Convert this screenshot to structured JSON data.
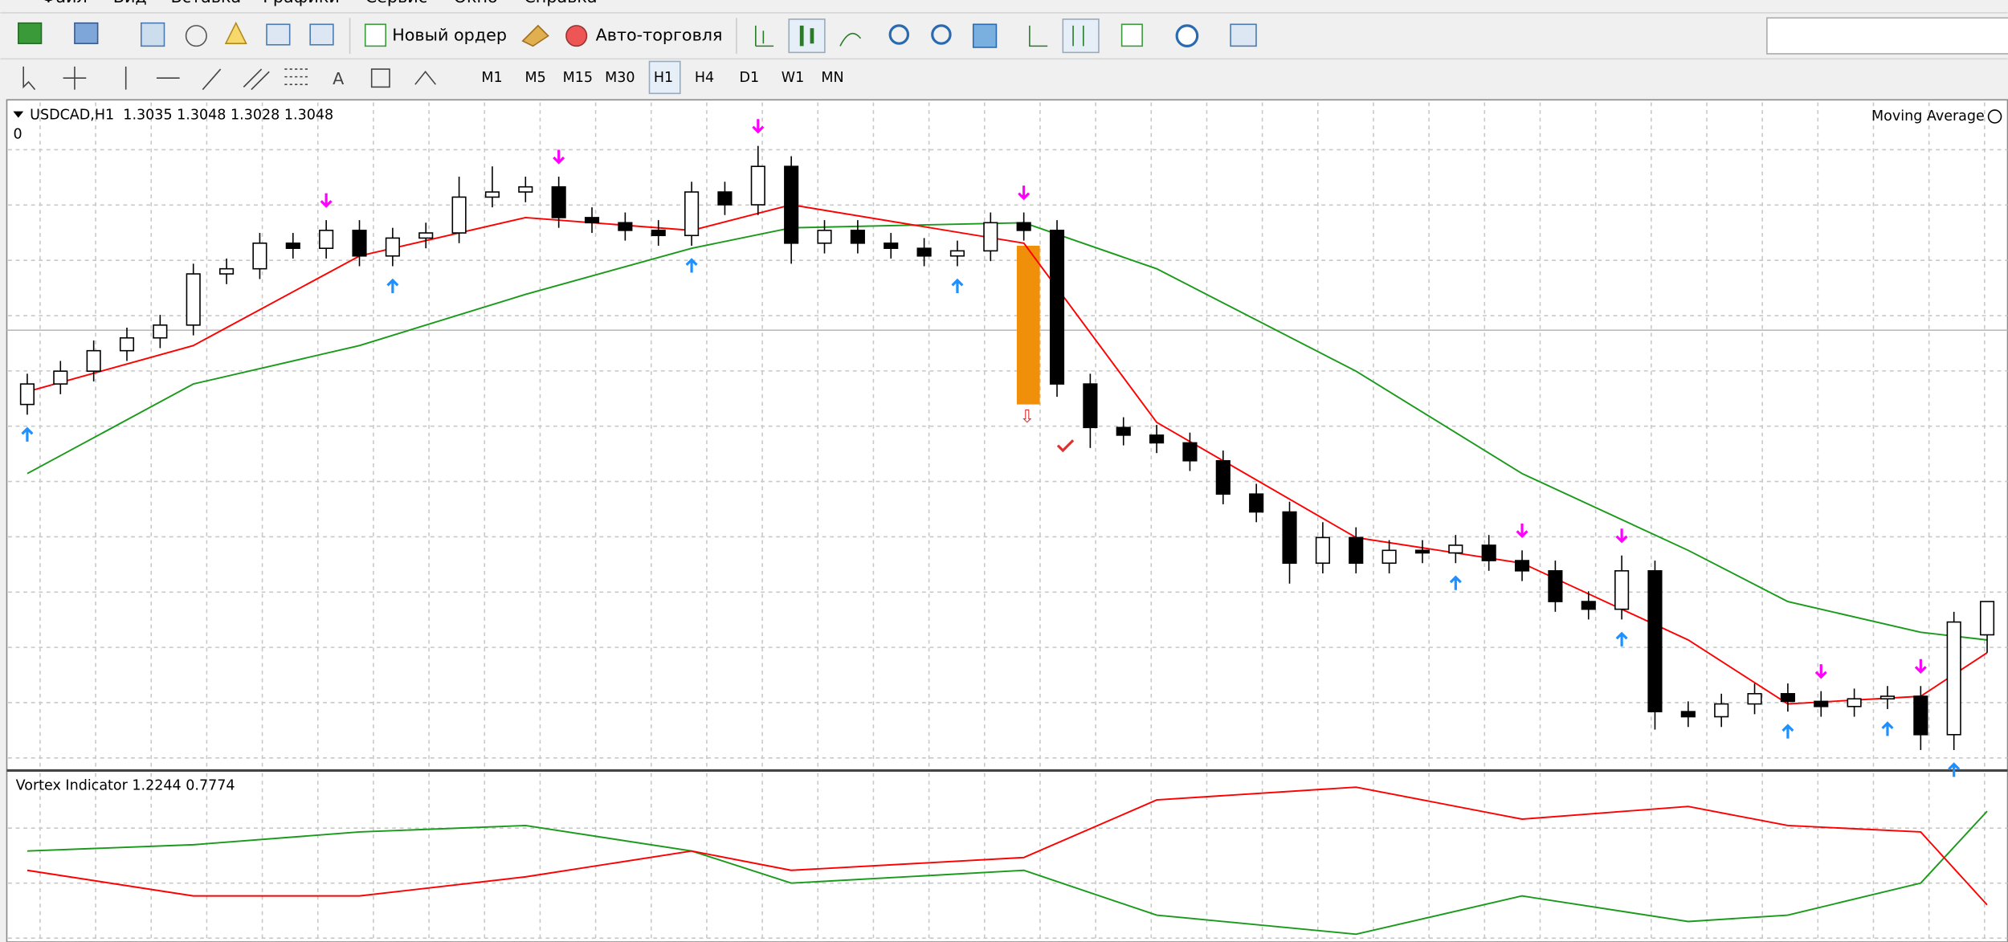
{
  "menu": [
    "Файл",
    "Вид",
    "Вставка",
    "Графики",
    "Сервис",
    "Окно",
    "Справка"
  ],
  "toolbar": {
    "new_order": "Новый ордер",
    "auto_trading": "Авто-торговля"
  },
  "timeframes": [
    "M1",
    "M5",
    "M15",
    "M30",
    "H1",
    "H4",
    "D1",
    "W1",
    "MN"
  ],
  "chart": {
    "symbol_line": "USDCAD,H1  1.3035 1.3048 1.3028 1.3048",
    "level": "0",
    "indicator_label": "Moving Average",
    "ylim": [
      1.2983,
      1.3243
    ],
    "candles": [
      [
        1.3125,
        1.3137,
        1.3121,
        1.3133
      ],
      [
        1.3133,
        1.3142,
        1.3129,
        1.3138
      ],
      [
        1.3138,
        1.315,
        1.3134,
        1.3146
      ],
      [
        1.3146,
        1.3155,
        1.3142,
        1.3151
      ],
      [
        1.3151,
        1.316,
        1.3147,
        1.3156
      ],
      [
        1.3156,
        1.318,
        1.3152,
        1.3176
      ],
      [
        1.3176,
        1.3182,
        1.3172,
        1.3178
      ],
      [
        1.3178,
        1.3192,
        1.3174,
        1.3188
      ],
      [
        1.3188,
        1.3192,
        1.3182,
        1.3186
      ],
      [
        1.3186,
        1.3197,
        1.3182,
        1.3193
      ],
      [
        1.3193,
        1.3197,
        1.3179,
        1.3183
      ],
      [
        1.3183,
        1.3194,
        1.3179,
        1.319
      ],
      [
        1.319,
        1.3196,
        1.3186,
        1.3192
      ],
      [
        1.3192,
        1.3214,
        1.3188,
        1.3206
      ],
      [
        1.3206,
        1.3218,
        1.3202,
        1.3208
      ],
      [
        1.3208,
        1.3214,
        1.3204,
        1.321
      ],
      [
        1.321,
        1.3214,
        1.3194,
        1.3198
      ],
      [
        1.3198,
        1.3202,
        1.3192,
        1.3196
      ],
      [
        1.3196,
        1.32,
        1.3189,
        1.3193
      ],
      [
        1.3193,
        1.3197,
        1.3187,
        1.3191
      ],
      [
        1.3191,
        1.3212,
        1.3187,
        1.3208
      ],
      [
        1.3208,
        1.3212,
        1.3199,
        1.3203
      ],
      [
        1.3203,
        1.3226,
        1.3199,
        1.3218
      ],
      [
        1.3218,
        1.3222,
        1.318,
        1.3188
      ],
      [
        1.3188,
        1.3197,
        1.3184,
        1.3193
      ],
      [
        1.3193,
        1.3197,
        1.3184,
        1.3188
      ],
      [
        1.3188,
        1.3192,
        1.3182,
        1.3186
      ],
      [
        1.3186,
        1.319,
        1.3179,
        1.3183
      ],
      [
        1.3183,
        1.3189,
        1.3179,
        1.3185
      ],
      [
        1.3185,
        1.32,
        1.3181,
        1.3196
      ],
      [
        1.3196,
        1.32,
        1.3189,
        1.3193
      ],
      [
        1.3193,
        1.3197,
        1.3128,
        1.3133
      ],
      [
        1.3133,
        1.3137,
        1.3108,
        1.3116
      ],
      [
        1.3116,
        1.312,
        1.3109,
        1.3113
      ],
      [
        1.3113,
        1.3117,
        1.3106,
        1.311
      ],
      [
        1.311,
        1.3114,
        1.3099,
        1.3103
      ],
      [
        1.3103,
        1.3107,
        1.3086,
        1.309
      ],
      [
        1.309,
        1.3094,
        1.3079,
        1.3083
      ],
      [
        1.3083,
        1.3087,
        1.3055,
        1.3063
      ],
      [
        1.3063,
        1.3079,
        1.3059,
        1.3073
      ],
      [
        1.3073,
        1.3077,
        1.3059,
        1.3063
      ],
      [
        1.3063,
        1.3072,
        1.3059,
        1.3068
      ],
      [
        1.3068,
        1.3072,
        1.3063,
        1.3067
      ],
      [
        1.3067,
        1.3074,
        1.3063,
        1.307
      ],
      [
        1.307,
        1.3074,
        1.306,
        1.3064
      ],
      [
        1.3064,
        1.3068,
        1.3056,
        1.306
      ],
      [
        1.306,
        1.3064,
        1.3044,
        1.3048
      ],
      [
        1.3048,
        1.3052,
        1.3041,
        1.3045
      ],
      [
        1.3045,
        1.3066,
        1.3041,
        1.306
      ],
      [
        1.306,
        1.3064,
        1.2998,
        1.3005
      ],
      [
        1.3005,
        1.3009,
        1.2999,
        1.3003
      ],
      [
        1.3003,
        1.3012,
        1.2999,
        1.3008
      ],
      [
        1.3008,
        1.3016,
        1.3004,
        1.3012
      ],
      [
        1.3012,
        1.3016,
        1.3005,
        1.3009
      ],
      [
        1.3009,
        1.3013,
        1.3003,
        1.3007
      ],
      [
        1.3007,
        1.3014,
        1.3003,
        1.301
      ],
      [
        1.301,
        1.3015,
        1.3006,
        1.3011
      ],
      [
        1.3011,
        1.3015,
        1.299,
        1.2996
      ],
      [
        1.2996,
        1.3044,
        1.299,
        1.304
      ],
      [
        1.3035,
        1.3048,
        1.3028,
        1.3048
      ]
    ],
    "ma_index": [
      0,
      5,
      10,
      15,
      20,
      23,
      30,
      34,
      40,
      45,
      50,
      53,
      57,
      59
    ],
    "ma_fast": {
      "color": "#ff0000",
      "values": [
        1.313,
        1.3148,
        1.3183,
        1.3198,
        1.3193,
        1.3203,
        1.3188,
        1.3118,
        1.3073,
        1.3063,
        1.3033,
        1.3008,
        1.3011,
        1.3028
      ]
    },
    "ma_slow": {
      "color": "#1a9a1a",
      "values": [
        1.3098,
        1.3133,
        1.3148,
        1.3168,
        1.3186,
        1.3194,
        1.3196,
        1.3178,
        1.3138,
        1.3098,
        1.3068,
        1.3048,
        1.3036,
        1.3033
      ]
    },
    "signals_up": [
      0,
      11,
      20,
      28,
      43,
      48,
      53,
      56,
      58
    ],
    "signals_down": [
      9,
      16,
      22,
      30,
      45,
      48,
      54,
      57
    ],
    "up_color": "#1e90ff",
    "down_color": "#ff00ff"
  },
  "vortex": {
    "label": "Vortex Indicator 1.2244 0.7774",
    "ylim": [
      0.6,
      1.4
    ],
    "plus": {
      "color": "#1a9a1a",
      "values": [
        1.034,
        1.064,
        1.125,
        1.156,
        1.034,
        0.881,
        0.942,
        0.728,
        0.637,
        0.82,
        0.698,
        0.728,
        0.881,
        1.2244
      ]
    },
    "minus": {
      "color": "#ff0000",
      "values": [
        0.942,
        0.82,
        0.82,
        0.911,
        1.034,
        0.942,
        1.003,
        1.278,
        1.339,
        1.186,
        1.247,
        1.156,
        1.125,
        0.7774
      ]
    }
  }
}
